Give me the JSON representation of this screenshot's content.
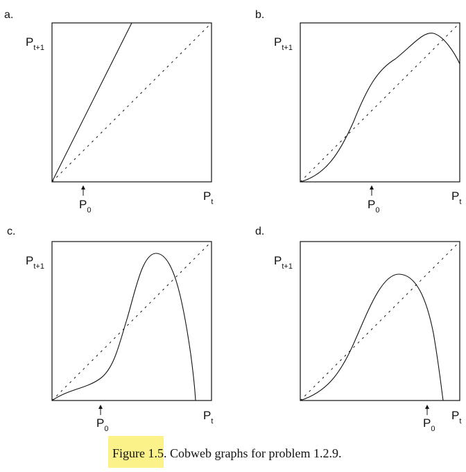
{
  "panels": [
    {
      "label": "a.",
      "y_axis_label": {
        "main": "P",
        "sub": "t+1"
      },
      "x_axis_label": {
        "main": "P",
        "sub": "t"
      },
      "marker_label": {
        "main": "P",
        "sub": "0"
      },
      "curve_type": "steep-line"
    },
    {
      "label": "b.",
      "y_axis_label": {
        "main": "P",
        "sub": "t+1"
      },
      "x_axis_label": {
        "main": "P",
        "sub": "t"
      },
      "marker_label": {
        "main": "P",
        "sub": "0"
      },
      "curve_type": "s-curve-hump"
    },
    {
      "label": "c.",
      "y_axis_label": {
        "main": "P",
        "sub": "t+1"
      },
      "x_axis_label": {
        "main": "P",
        "sub": "t"
      },
      "marker_label": {
        "main": "P",
        "sub": "0"
      },
      "curve_type": "tall-hump"
    },
    {
      "label": "d.",
      "y_axis_label": {
        "main": "P",
        "sub": "t+1"
      },
      "x_axis_label": {
        "main": "P",
        "sub": "t"
      },
      "marker_label": {
        "main": "P",
        "sub": "0"
      },
      "curve_type": "hump"
    }
  ],
  "caption": {
    "prefix": "Figure 1.",
    "highlight_end": "5",
    "text": ". Cobweb graphs for problem 1.2.9."
  },
  "colors": {
    "curve": "#111111",
    "diagonal": "#111111",
    "highlight": "#fbf28a"
  }
}
